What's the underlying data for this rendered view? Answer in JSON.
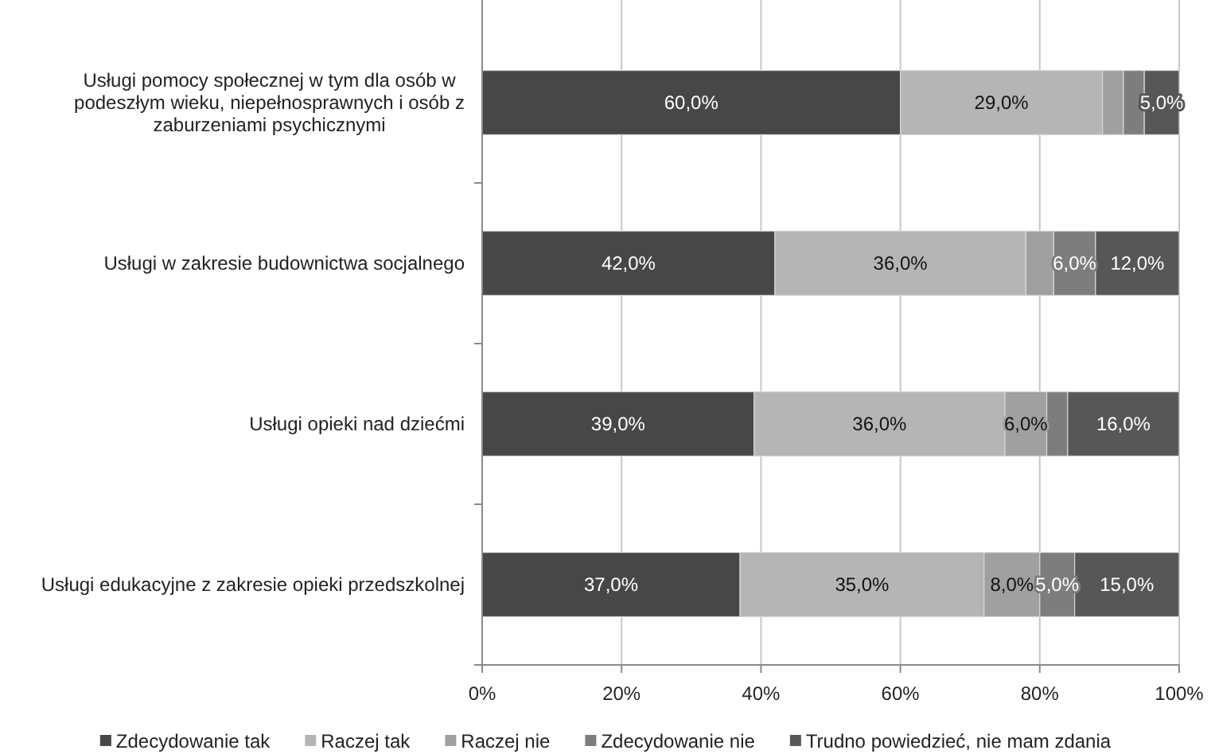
{
  "chart_data": {
    "type": "bar",
    "orientation": "horizontal",
    "stacked": true,
    "categories": [
      "Usługi pomocy społecznej w tym dla osób w podeszłym wieku, niepełnosprawnych i osób z zaburzeniami psychicznymi",
      "Usługi w zakresie budownictwa socjalnego",
      "Usługi opieki nad dziećmi",
      "Usługi edukacyjne z zakresie opieki przedszkolnej"
    ],
    "series": [
      {
        "name": "Zdecydowanie tak",
        "color": "#474747",
        "values": [
          60,
          42,
          39,
          37
        ],
        "value_labels": [
          "60,0%",
          "42,0%",
          "39,0%",
          "37,0%"
        ]
      },
      {
        "name": "Raczej tak",
        "color": "#b5b5b5",
        "values": [
          29,
          36,
          36,
          35
        ],
        "value_labels": [
          "29,0%",
          "36,0%",
          "36,0%",
          "35,0%"
        ]
      },
      {
        "name": "Raczej nie",
        "color": "#a0a0a0",
        "values": [
          3,
          4,
          6,
          8
        ],
        "value_labels": [
          null,
          null,
          "6,0%",
          "8,0%"
        ]
      },
      {
        "name": "Zdecydowanie nie",
        "color": "#7d7d7d",
        "values": [
          3,
          6,
          3,
          5
        ],
        "value_labels": [
          null,
          "6,0%",
          null,
          "5,0%"
        ]
      },
      {
        "name": "Trudno powiedzieć, nie mam zdania",
        "color": "#575757",
        "values": [
          5,
          12,
          16,
          15
        ],
        "value_labels": [
          "5,0%",
          "12,0%",
          "16,0%",
          "15,0%"
        ]
      }
    ],
    "xlim": [
      0,
      100
    ],
    "xticks": [
      {
        "value": 0,
        "label": "0%"
      },
      {
        "value": 20,
        "label": "20%"
      },
      {
        "value": 40,
        "label": "40%"
      },
      {
        "value": 60,
        "label": "60%"
      },
      {
        "value": 80,
        "label": "80%"
      },
      {
        "value": 100,
        "label": "100%"
      }
    ],
    "grid": "x",
    "legend": "bottom"
  }
}
